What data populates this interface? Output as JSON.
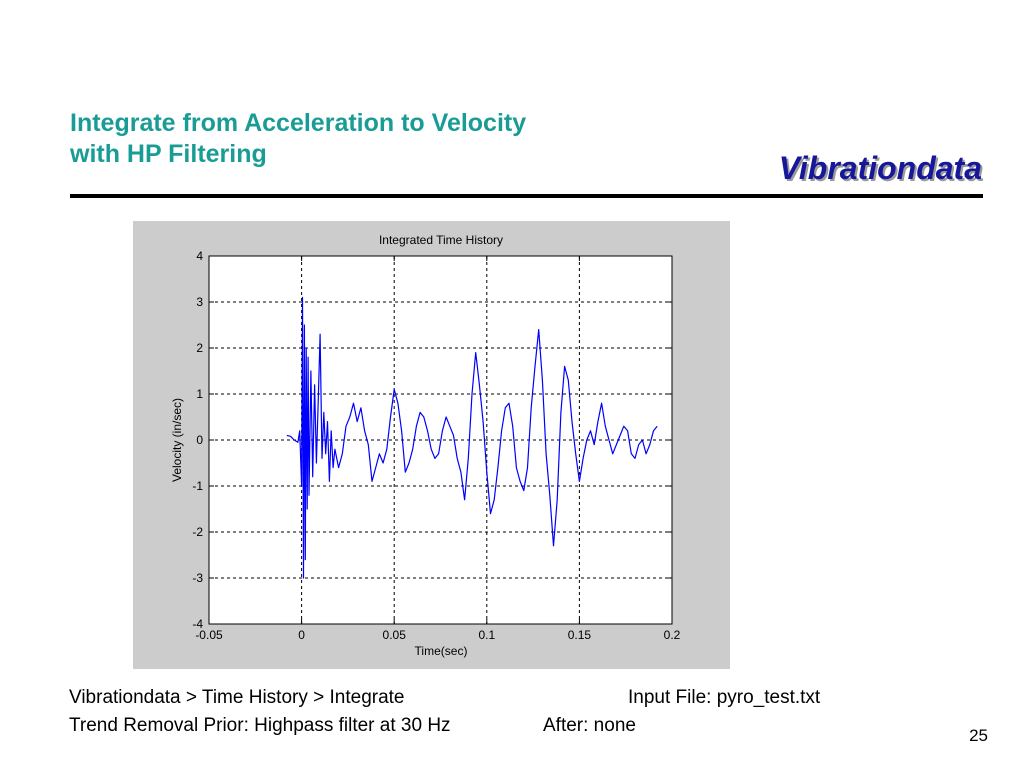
{
  "slide": {
    "title_line1": "Integrate from Acceleration to Velocity",
    "title_line2": "with HP Filtering",
    "brand": "Vibrationdata",
    "caption_path": "Vibrationdata > Time History > Integrate",
    "caption_input": "Input File:   pyro_test.txt",
    "caption_trend": "Trend Removal Prior:  Highpass filter at 30 Hz",
    "caption_after": "After:  none",
    "page_number": "25"
  },
  "colors": {
    "title": "#1a9c96",
    "brand": "#17179c",
    "series": "#0000ff",
    "figure_background": "#cccccc"
  },
  "chart_data": {
    "type": "line",
    "title": "Integrated Time History",
    "xlabel": "Time(sec)",
    "ylabel": "Velocity  (in/sec)",
    "xlim": [
      -0.05,
      0.2
    ],
    "ylim": [
      -4,
      4
    ],
    "xticks": [
      -0.05,
      0,
      0.05,
      0.1,
      0.15,
      0.2
    ],
    "xtick_labels": [
      "-0.05",
      "0",
      "0.05",
      "0.1",
      "0.15",
      "0.2"
    ],
    "yticks": [
      -4,
      -3,
      -2,
      -1,
      0,
      1,
      2,
      3,
      4
    ],
    "ytick_labels": [
      "-4",
      "-3",
      "-2",
      "-1",
      "0",
      "1",
      "2",
      "3",
      "4"
    ],
    "grid": true,
    "grid_style": "dashed",
    "legend": "none",
    "series": [
      {
        "x": [
          -0.008,
          -0.006,
          -0.004,
          -0.002,
          -0.001,
          0.0,
          0.0005,
          0.001,
          0.0015,
          0.002,
          0.0025,
          0.003,
          0.0035,
          0.004,
          0.005,
          0.006,
          0.007,
          0.008,
          0.009,
          0.01,
          0.011,
          0.012,
          0.013,
          0.014,
          0.015,
          0.016,
          0.017,
          0.018,
          0.02,
          0.022,
          0.024,
          0.026,
          0.028,
          0.03,
          0.032,
          0.034,
          0.036,
          0.038,
          0.04,
          0.042,
          0.044,
          0.046,
          0.048,
          0.05,
          0.052,
          0.054,
          0.056,
          0.058,
          0.06,
          0.062,
          0.064,
          0.066,
          0.068,
          0.07,
          0.072,
          0.074,
          0.076,
          0.078,
          0.08,
          0.082,
          0.084,
          0.086,
          0.088,
          0.09,
          0.092,
          0.094,
          0.096,
          0.098,
          0.1,
          0.102,
          0.104,
          0.106,
          0.108,
          0.11,
          0.112,
          0.114,
          0.116,
          0.118,
          0.12,
          0.122,
          0.124,
          0.126,
          0.128,
          0.13,
          0.132,
          0.134,
          0.136,
          0.138,
          0.14,
          0.142,
          0.144,
          0.146,
          0.148,
          0.15,
          0.152,
          0.154,
          0.156,
          0.158,
          0.16,
          0.162,
          0.164,
          0.166,
          0.168,
          0.17,
          0.172,
          0.174,
          0.176,
          0.178,
          0.18,
          0.182,
          0.184,
          0.186,
          0.188,
          0.19,
          0.192
        ],
        "y": [
          0.1,
          0.08,
          0.0,
          -0.05,
          0.2,
          -1.0,
          3.1,
          -3.0,
          2.5,
          -2.6,
          2.0,
          -1.5,
          1.8,
          -1.2,
          1.5,
          -0.8,
          1.2,
          -0.5,
          0.9,
          2.3,
          -0.4,
          0.6,
          -0.3,
          0.4,
          -0.9,
          0.2,
          -0.6,
          -0.2,
          -0.6,
          -0.3,
          0.3,
          0.5,
          0.8,
          0.4,
          0.7,
          0.2,
          -0.1,
          -0.9,
          -0.6,
          -0.3,
          -0.5,
          -0.2,
          0.5,
          1.1,
          0.8,
          0.2,
          -0.7,
          -0.5,
          -0.2,
          0.3,
          0.6,
          0.5,
          0.2,
          -0.2,
          -0.4,
          -0.3,
          0.2,
          0.5,
          0.3,
          0.1,
          -0.4,
          -0.7,
          -1.3,
          -0.4,
          1.0,
          1.9,
          1.2,
          0.4,
          -0.7,
          -1.6,
          -1.3,
          -0.6,
          0.2,
          0.7,
          0.8,
          0.3,
          -0.6,
          -0.9,
          -1.1,
          -0.6,
          0.7,
          1.6,
          2.4,
          1.3,
          -0.3,
          -1.2,
          -2.3,
          -1.3,
          0.6,
          1.6,
          1.3,
          0.4,
          -0.3,
          -0.9,
          -0.4,
          0.0,
          0.2,
          -0.1,
          0.4,
          0.8,
          0.3,
          0.0,
          -0.3,
          -0.1,
          0.1,
          0.3,
          0.2,
          -0.3,
          -0.4,
          -0.1,
          0.0,
          -0.3,
          -0.1,
          0.2,
          0.3
        ]
      }
    ]
  }
}
